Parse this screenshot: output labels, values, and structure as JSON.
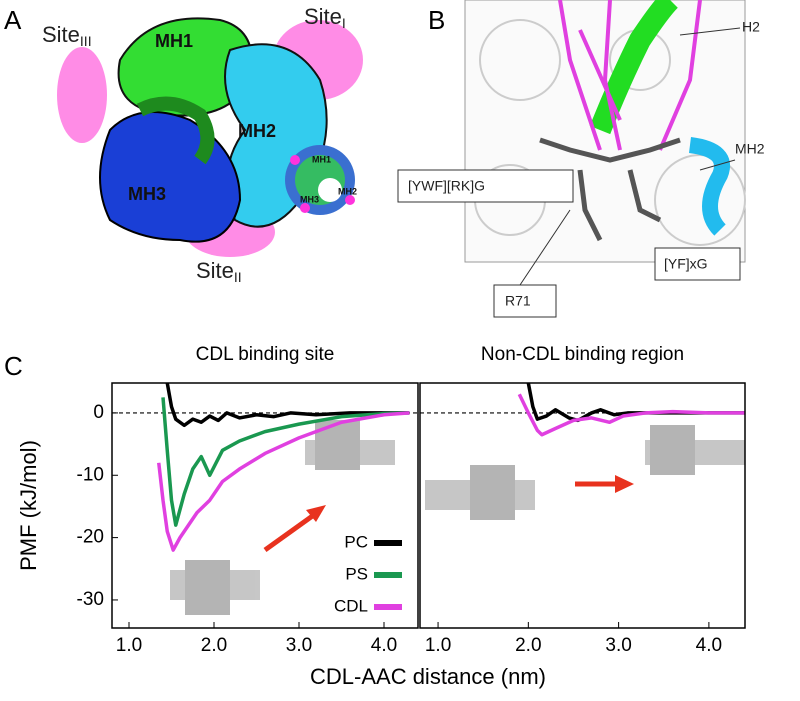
{
  "panel_a": {
    "label": "A",
    "sites": [
      {
        "base": "Site",
        "sub": "III"
      },
      {
        "base": "Site",
        "sub": "I"
      },
      {
        "base": "Site",
        "sub": "II"
      }
    ],
    "helices": [
      "MH1",
      "MH2",
      "MH3"
    ],
    "inset_helices": [
      "MH1",
      "MH2",
      "MH3"
    ]
  },
  "panel_b": {
    "label": "B",
    "callouts": [
      "H2",
      "MH2",
      "[YWF][RK]G",
      "R71",
      "[YF]xG"
    ]
  },
  "panel_c": {
    "label": "C"
  },
  "chart_data": [
    {
      "type": "line",
      "title": "CDL binding site",
      "xlabel": "CDL-AAC distance (nm)",
      "ylabel": "PMF (kJ/mol)",
      "xlim": [
        0.8,
        4.4
      ],
      "ylim": [
        -34.5,
        4.8
      ],
      "xticks": [
        {
          "value": 1,
          "label": "1.0"
        },
        {
          "value": 2,
          "label": "2.0"
        },
        {
          "value": 3,
          "label": "3.0"
        },
        {
          "value": 4,
          "label": "4.0"
        }
      ],
      "yticks": [
        0,
        -10,
        -20,
        -30
      ],
      "reference_line": 0,
      "legend": "lower right",
      "series": [
        {
          "name": "PC",
          "color": "#000000",
          "x": [
            1.45,
            1.5,
            1.55,
            1.65,
            1.75,
            1.85,
            1.95,
            2.05,
            2.15,
            2.3,
            2.5,
            2.7,
            2.9,
            3.2,
            3.6,
            4.0,
            4.3
          ],
          "values": [
            4.8,
            1,
            -1,
            -2,
            -1,
            -1.5,
            -0.5,
            -1.2,
            0,
            -0.8,
            -0.3,
            -0.6,
            0,
            -0.3,
            0,
            0,
            0
          ]
        },
        {
          "name": "PS",
          "color": "#1a9850",
          "x": [
            1.4,
            1.45,
            1.5,
            1.55,
            1.65,
            1.75,
            1.85,
            1.95,
            2.1,
            2.3,
            2.6,
            3.0,
            3.5,
            4.0,
            4.3
          ],
          "values": [
            2.5,
            -6,
            -14,
            -18,
            -13,
            -9,
            -7,
            -10,
            -6,
            -4.5,
            -3,
            -1.8,
            -0.6,
            -0.1,
            0
          ]
        },
        {
          "name": "CDL",
          "color": "#e040e0",
          "x": [
            1.35,
            1.4,
            1.45,
            1.52,
            1.6,
            1.7,
            1.8,
            1.95,
            2.1,
            2.3,
            2.6,
            3.0,
            3.5,
            4.0,
            4.3
          ],
          "values": [
            -8,
            -14,
            -19,
            -22,
            -20,
            -18,
            -16,
            -14,
            -11,
            -9,
            -6.5,
            -4,
            -1.5,
            -0.3,
            0
          ]
        }
      ]
    },
    {
      "type": "line",
      "title": "Non-CDL binding region",
      "xlim": [
        0.8,
        4.4
      ],
      "ylim": [
        -34.5,
        4.8
      ],
      "xticks": [
        {
          "value": 1,
          "label": "1.0"
        },
        {
          "value": 2,
          "label": "2.0"
        },
        {
          "value": 3,
          "label": "3.0"
        },
        {
          "value": 4,
          "label": "4.0"
        }
      ],
      "reference_line": 0,
      "series": [
        {
          "color": "#000000",
          "x": [
            2.0,
            2.05,
            2.1,
            2.2,
            2.3,
            2.45,
            2.55,
            2.7,
            2.8,
            2.95,
            3.1,
            3.4,
            4.0,
            4.4
          ],
          "values": [
            4.8,
            1,
            -1,
            -0.5,
            0.5,
            -0.8,
            -1.2,
            0,
            0.5,
            -0.3,
            0,
            0,
            0,
            0
          ]
        },
        {
          "color": "#e040e0",
          "x": [
            1.9,
            2.0,
            2.1,
            2.15,
            2.3,
            2.5,
            2.7,
            2.9,
            3.05,
            3.3,
            3.6,
            4.0,
            4.4
          ],
          "values": [
            3,
            0,
            -2.8,
            -3.5,
            -2.5,
            -1.2,
            -0.8,
            -1.5,
            -0.5,
            0,
            0.2,
            0,
            0
          ]
        }
      ]
    }
  ]
}
